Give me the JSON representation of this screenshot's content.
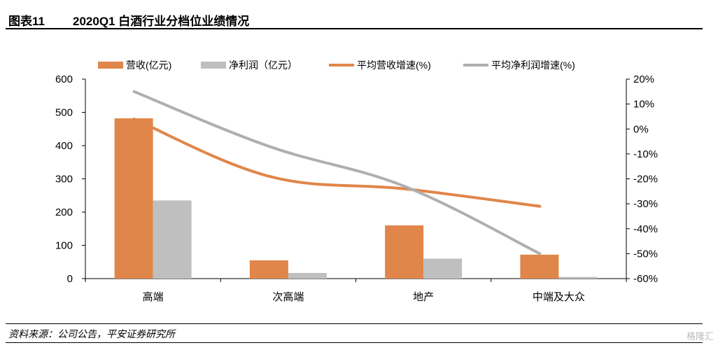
{
  "header": {
    "figure_label": "图表11",
    "title": "2020Q1 白酒行业分档位业绩情况"
  },
  "footer": {
    "source": "资料来源：公司公告，平安证券研究所"
  },
  "watermark": "格隆汇",
  "chart_data": {
    "type": "bar",
    "categories": [
      "高端",
      "次高端",
      "地产",
      "中端及大众"
    ],
    "series": [
      {
        "name": "营收(亿元)",
        "type": "bar",
        "axis": "left",
        "color": "#E0864A",
        "values": [
          482,
          55,
          160,
          72
        ]
      },
      {
        "name": "净利润（亿元）",
        "type": "bar",
        "axis": "left",
        "color": "#BFBFBF",
        "values": [
          235,
          17,
          60,
          5
        ]
      },
      {
        "name": "平均营收增速(%)",
        "type": "line",
        "axis": "right",
        "color": "#E0864A",
        "values": [
          4,
          -19,
          -24,
          -31
        ]
      },
      {
        "name": "平均净利润增速(%)",
        "type": "line",
        "axis": "right",
        "color": "#AFAFAF",
        "values": [
          15,
          -7,
          -23,
          -50
        ]
      }
    ],
    "y_left": {
      "min": 0,
      "max": 600,
      "ticks": [
        "0",
        "100",
        "200",
        "300",
        "400",
        "500",
        "600"
      ]
    },
    "y_right": {
      "min": -60,
      "max": 20,
      "ticks": [
        "-60%",
        "-50%",
        "-40%",
        "-30%",
        "-20%",
        "-10%",
        "0%",
        "10%",
        "20%"
      ]
    },
    "legend_position": "top",
    "grid": false
  }
}
